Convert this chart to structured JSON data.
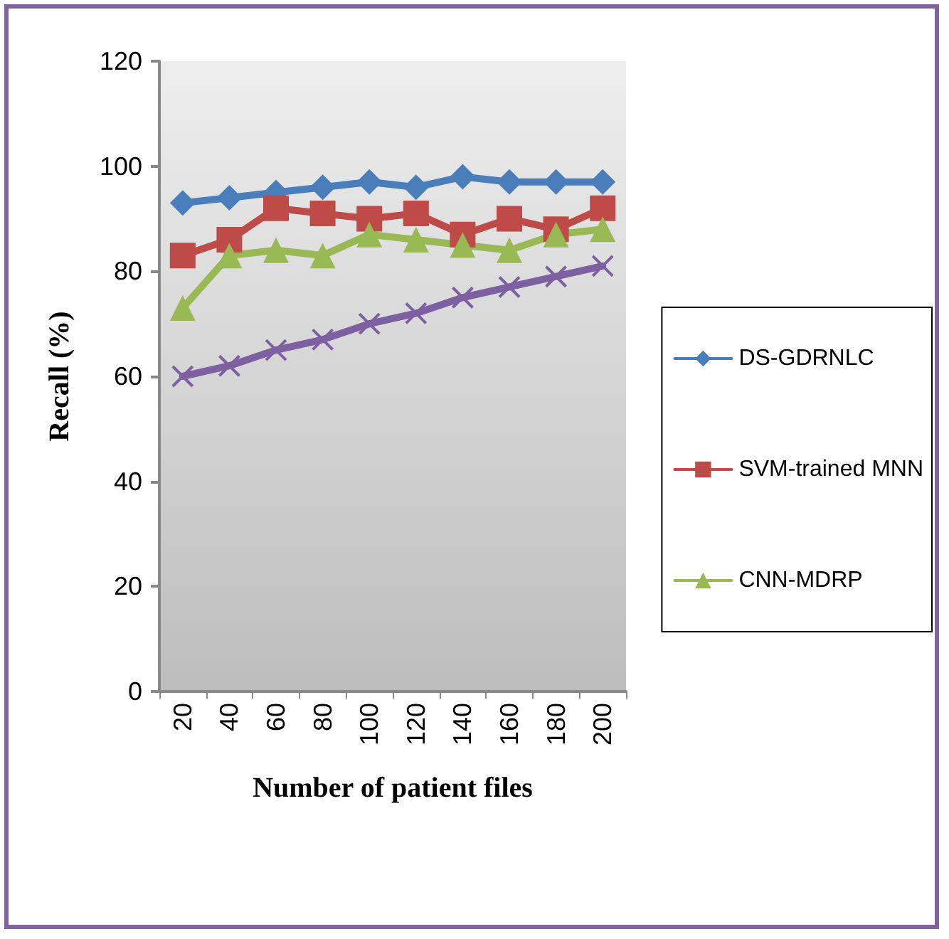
{
  "chart_data": {
    "type": "line",
    "xlabel": "Number of patient files",
    "ylabel": "Recall (%)",
    "categories": [
      "20",
      "40",
      "60",
      "80",
      "100",
      "120",
      "140",
      "160",
      "180",
      "200"
    ],
    "ylim": [
      0,
      120
    ],
    "yticks": [
      0,
      20,
      40,
      60,
      80,
      100,
      120
    ],
    "grid": false,
    "legend": "right",
    "series": [
      {
        "name": "DS-GDRNLC",
        "color": "#4a7ebb",
        "marker": "diamond",
        "values": [
          93,
          94,
          95,
          96,
          97,
          96,
          98,
          97,
          97,
          97
        ]
      },
      {
        "name": "SVM-trained MNN",
        "color": "#be4b48",
        "marker": "square",
        "values": [
          83,
          86,
          92,
          91,
          90,
          91,
          87,
          90,
          88,
          92
        ]
      },
      {
        "name": "CNN-MDRP",
        "color": "#98b954",
        "marker": "triangle",
        "values": [
          73,
          83,
          84,
          83,
          87,
          86,
          85,
          84,
          87,
          88
        ]
      },
      {
        "color": "#7d60a0",
        "marker": "cross",
        "values": [
          60,
          62,
          65,
          67,
          70,
          72,
          75,
          77,
          79,
          81
        ]
      }
    ]
  }
}
